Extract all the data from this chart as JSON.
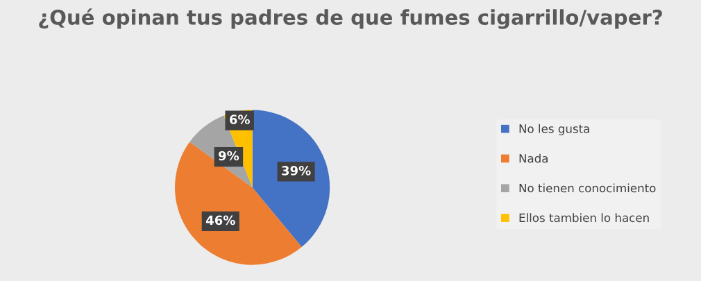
{
  "chart_data": {
    "type": "pie",
    "title": "¿Qué opinan tus padres de que fumes cigarrillo/vaper?",
    "categories": [
      "No les gusta",
      "Nada",
      "No tienen conocimiento",
      "Ellos tambien lo hacen"
    ],
    "values": [
      39,
      46,
      9,
      6
    ],
    "colors": [
      "#4472c4",
      "#ed7d31",
      "#a5a5a5",
      "#ffc000"
    ],
    "value_labels": [
      "39%",
      "46%",
      "9%",
      "6%"
    ],
    "legend": "right"
  }
}
